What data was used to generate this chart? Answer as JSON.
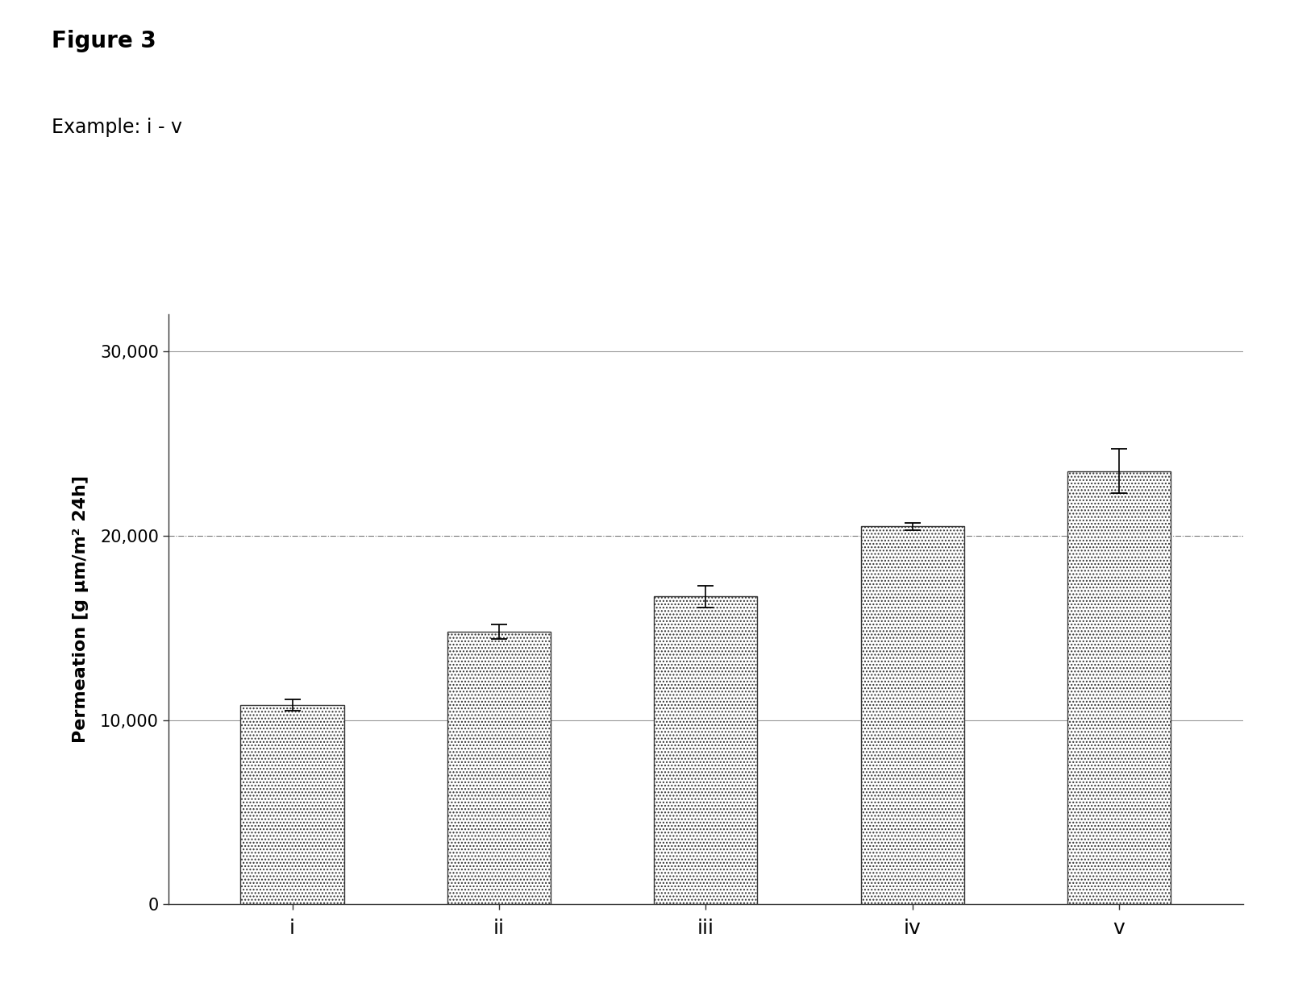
{
  "categories": [
    "i",
    "ii",
    "iii",
    "iv",
    "v"
  ],
  "values": [
    10800,
    14800,
    16700,
    20500,
    23500
  ],
  "errors": [
    300,
    400,
    600,
    200,
    1200
  ],
  "ylabel": "Permeation [g μm/m² 24h]",
  "ylim": [
    0,
    32000
  ],
  "yticks": [
    0,
    10000,
    20000,
    30000
  ],
  "yticklabels": [
    "0",
    "10,000",
    "20,000",
    "30,000"
  ],
  "title": "Figure 3",
  "subtitle": "Example: i - v",
  "bar_facecolor": "#ffffff",
  "bar_hatch": "....",
  "bar_edge_color": "#333333",
  "background_color": "#ffffff",
  "spine_color": "#333333",
  "refline_y": 20000,
  "refline_color": "#777777",
  "refline_style": "-.",
  "gridline_y": [
    10000,
    30000
  ],
  "gridline_color": "#999999",
  "gridline_style": "-",
  "title_fontsize": 20,
  "subtitle_fontsize": 17,
  "ylabel_fontsize": 16,
  "tick_fontsize": 15,
  "xtick_fontsize": 18
}
